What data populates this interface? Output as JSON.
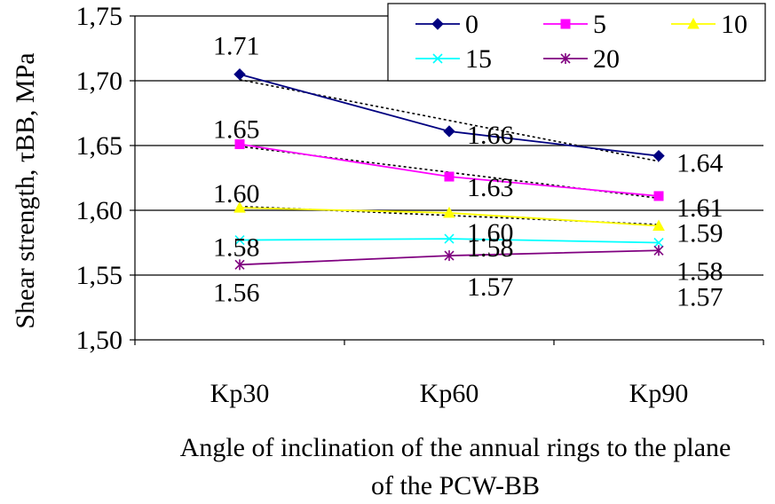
{
  "chart_data": {
    "type": "line",
    "title": "",
    "ylabel": "Shear strength, τBB, MPa",
    "xlabel_lines": [
      "Angle of inclination of the annual rings to the plane",
      "of the PCW-BB"
    ],
    "categories": [
      "Kp30",
      "Kp60",
      "Kp90"
    ],
    "ylim": [
      1.5,
      1.75
    ],
    "yticks": [
      1.5,
      1.55,
      1.6,
      1.65,
      1.7,
      1.75
    ],
    "ytick_labels": [
      "1,50",
      "1,55",
      "1,60",
      "1,65",
      "1,70",
      "1,75"
    ],
    "grid": "horizontal",
    "legend_position": "top-right",
    "series": [
      {
        "name": "0",
        "color": "#000080",
        "marker": "diamond",
        "values": [
          1.705,
          1.661,
          1.642
        ],
        "labels": [
          "1.71",
          "1.66",
          "1.64"
        ],
        "trend": true
      },
      {
        "name": "5",
        "color": "#ff00ff",
        "marker": "square",
        "values": [
          1.651,
          1.626,
          1.611
        ],
        "labels": [
          "1.65",
          "1.63",
          "1.61"
        ],
        "trend": true
      },
      {
        "name": "10",
        "color": "#ffff00",
        "marker": "triangle",
        "values": [
          1.602,
          1.598,
          1.588
        ],
        "labels": [
          "1.60",
          "1.60",
          "1.59"
        ],
        "trend": true
      },
      {
        "name": "15",
        "color": "#00ffff",
        "marker": "x",
        "values": [
          1.577,
          1.578,
          1.575
        ],
        "labels": [
          "1.58",
          "1.58",
          "1.58"
        ],
        "trend": false
      },
      {
        "name": "20",
        "color": "#800080",
        "marker": "star",
        "values": [
          1.558,
          1.565,
          1.569
        ],
        "labels": [
          "1.56",
          "1.57",
          "1.57"
        ],
        "trend": false
      }
    ]
  }
}
